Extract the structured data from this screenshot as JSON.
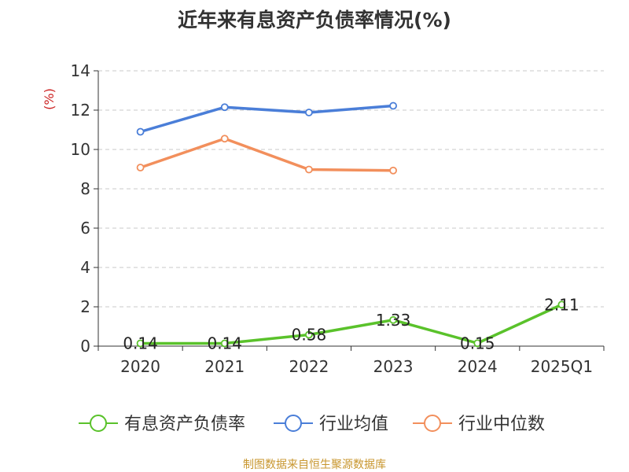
{
  "chart_data": {
    "type": "line",
    "title": "近年来有息资产负债率情况(%)",
    "xlabel": "",
    "ylabel": "(%)",
    "ylim": [
      0,
      14
    ],
    "yticks": [
      "0",
      "2",
      "4",
      "6",
      "8",
      "10",
      "12",
      "14"
    ],
    "categories": [
      "2020",
      "2021",
      "2022",
      "2023",
      "2024",
      "2025Q1"
    ],
    "grid": "horizontal dashed",
    "legend_position": "bottom",
    "series": [
      {
        "name": "有息资产负债率",
        "color": "#5ac22b",
        "values": [
          0.14,
          0.14,
          0.58,
          1.33,
          0.15,
          2.11
        ],
        "labels": [
          "0.14",
          "0.14",
          "0.58",
          "1.33",
          "0.15",
          "2.11"
        ]
      },
      {
        "name": "行业均值",
        "color": "#4a7ed8",
        "values": [
          10.9,
          12.15,
          11.88,
          12.22,
          null,
          null
        ]
      },
      {
        "name": "行业中位数",
        "color": "#f28f5c",
        "values": [
          9.08,
          10.55,
          8.98,
          8.93,
          null,
          null
        ]
      }
    ]
  },
  "ylabel_color": "#cc2222",
  "source_note": "制图数据来自恒生聚源数据库"
}
